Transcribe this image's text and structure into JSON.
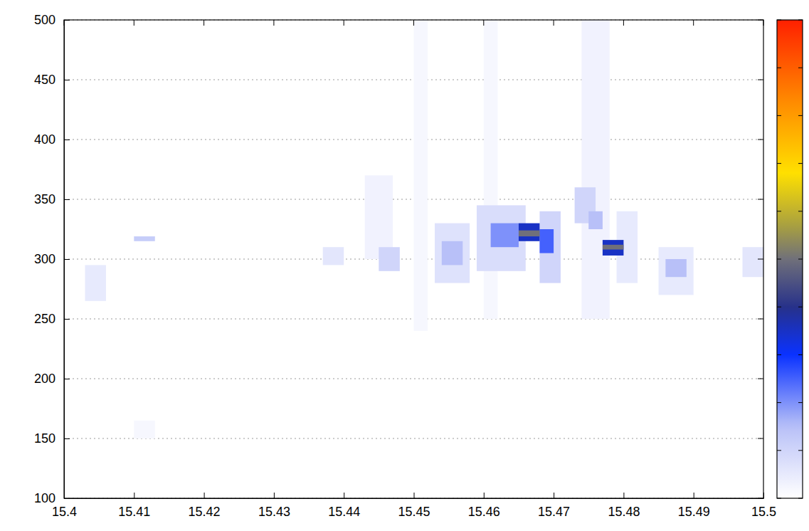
{
  "chart_data": {
    "type": "heatmap",
    "xlim": [
      15.4,
      15.5
    ],
    "xticks": [
      15.4,
      15.41,
      15.42,
      15.43,
      15.44,
      15.45,
      15.46,
      15.47,
      15.48,
      15.49,
      15.5
    ],
    "ylim": [
      100,
      500
    ],
    "yticks": [
      100,
      150,
      200,
      250,
      300,
      350,
      400,
      450,
      500
    ],
    "grid": "y",
    "colorbar": {
      "range": [
        0,
        1
      ],
      "ticks": [
        0,
        0.1,
        0.2,
        0.3,
        0.4,
        0.5,
        0.6,
        0.7,
        0.8,
        0.9,
        1
      ]
    },
    "cells": [
      {
        "x": [
          15.45,
          15.452
        ],
        "y": [
          240,
          500
        ],
        "value": 0.02
      },
      {
        "x": [
          15.46,
          15.462
        ],
        "y": [
          250,
          500
        ],
        "value": 0.02
      },
      {
        "x": [
          15.474,
          15.478
        ],
        "y": [
          250,
          500
        ],
        "value": 0.03
      },
      {
        "x": [
          15.443,
          15.447
        ],
        "y": [
          300,
          370
        ],
        "value": 0.03
      },
      {
        "x": [
          15.41,
          15.413
        ],
        "y": [
          150,
          165
        ],
        "value": 0.02
      },
      {
        "x": [
          15.403,
          15.406
        ],
        "y": [
          265,
          295
        ],
        "value": 0.05
      },
      {
        "x": [
          15.41,
          15.413
        ],
        "y": [
          315,
          319
        ],
        "value": 0.12
      },
      {
        "x": [
          15.437,
          15.44
        ],
        "y": [
          295,
          310
        ],
        "value": 0.06
      },
      {
        "x": [
          15.445,
          15.448
        ],
        "y": [
          290,
          310
        ],
        "value": 0.1
      },
      {
        "x": [
          15.453,
          15.458
        ],
        "y": [
          280,
          330
        ],
        "value": 0.07
      },
      {
        "x": [
          15.454,
          15.457
        ],
        "y": [
          295,
          315
        ],
        "value": 0.15
      },
      {
        "x": [
          15.459,
          15.466
        ],
        "y": [
          290,
          345
        ],
        "value": 0.08
      },
      {
        "x": [
          15.461,
          15.465
        ],
        "y": [
          310,
          330
        ],
        "value": 0.2
      },
      {
        "x": [
          15.468,
          15.471
        ],
        "y": [
          280,
          340
        ],
        "value": 0.1
      },
      {
        "x": [
          15.468,
          15.47
        ],
        "y": [
          305,
          325
        ],
        "value": 0.25
      },
      {
        "x": [
          15.465,
          15.468
        ],
        "y": [
          315,
          330
        ],
        "value": 0.35
      },
      {
        "x": [
          15.465,
          15.468
        ],
        "y": [
          319,
          324
        ],
        "value": 0.5
      },
      {
        "x": [
          15.473,
          15.476
        ],
        "y": [
          330,
          360
        ],
        "value": 0.1
      },
      {
        "x": [
          15.475,
          15.477
        ],
        "y": [
          325,
          340
        ],
        "value": 0.15
      },
      {
        "x": [
          15.479,
          15.482
        ],
        "y": [
          280,
          340
        ],
        "value": 0.05
      },
      {
        "x": [
          15.477,
          15.48
        ],
        "y": [
          303,
          316
        ],
        "value": 0.35
      },
      {
        "x": [
          15.477,
          15.48
        ],
        "y": [
          308,
          312
        ],
        "value": 0.5
      },
      {
        "x": [
          15.485,
          15.49
        ],
        "y": [
          270,
          310
        ],
        "value": 0.05
      },
      {
        "x": [
          15.486,
          15.489
        ],
        "y": [
          285,
          300
        ],
        "value": 0.15
      },
      {
        "x": [
          15.497,
          15.5
        ],
        "y": [
          285,
          310
        ],
        "value": 0.06
      }
    ]
  }
}
